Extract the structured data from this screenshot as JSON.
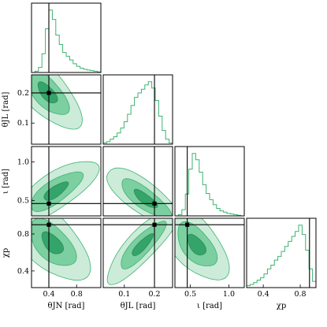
{
  "chart_data": {
    "type": "corner",
    "parameters": [
      {
        "key": "theta_JN",
        "label": "θJN [rad]",
        "ticks": [
          "0.4",
          "0.8"
        ],
        "tick_values": [
          0.4,
          0.8
        ],
        "range": [
          0.15,
          1.15
        ],
        "truth": 0.4
      },
      {
        "key": "theta_JL",
        "label": "θJL [rad]",
        "ticks": [
          "0.1",
          "0.2"
        ],
        "tick_values": [
          0.1,
          0.2
        ],
        "range": [
          0.03,
          0.26
        ],
        "truth": 0.2
      },
      {
        "key": "iota",
        "label": "ι [rad]",
        "ticks": [
          "0.5",
          "1.0"
        ],
        "tick_values": [
          0.5,
          1.0
        ],
        "range": [
          0.3,
          1.2
        ],
        "truth": 0.46
      },
      {
        "key": "chi_p",
        "label": "χp",
        "ticks": [
          "0.4",
          "0.8"
        ],
        "tick_values": [
          0.4,
          0.8
        ],
        "range": [
          0.22,
          0.97
        ],
        "truth": 0.9
      }
    ],
    "y_tick_labels": {
      "theta_JL": [
        "0.1",
        "0.2"
      ],
      "iota": [
        "0.5",
        "1.0"
      ],
      "chi_p": [
        "0.4",
        "0.8"
      ]
    },
    "y_tick_values": {
      "theta_JL": [
        0.1,
        0.2
      ],
      "iota": [
        0.5,
        1.0
      ],
      "chi_p": [
        0.4,
        0.8
      ]
    },
    "truth_color": "#000000",
    "posterior_color": "#3cb371",
    "contour_levels": [
      "outer",
      "middle",
      "inner"
    ],
    "marginals": {
      "theta_JN": [
        0.0,
        0.02,
        0.08,
        0.3,
        0.7,
        1.0,
        0.85,
        0.6,
        0.45,
        0.32,
        0.26,
        0.2,
        0.14,
        0.1,
        0.07,
        0.05,
        0.04,
        0.03,
        0.02,
        0.01
      ],
      "theta_JL": [
        0.02,
        0.04,
        0.08,
        0.12,
        0.18,
        0.26,
        0.36,
        0.48,
        0.62,
        0.75,
        0.82,
        0.88,
        0.95,
        1.0,
        0.9,
        0.7,
        0.45,
        0.22,
        0.08,
        0.02
      ],
      "iota": [
        0.0,
        0.02,
        0.1,
        0.35,
        0.75,
        1.0,
        0.9,
        0.7,
        0.5,
        0.36,
        0.26,
        0.18,
        0.12,
        0.08,
        0.06,
        0.04,
        0.03,
        0.02,
        0.01,
        0.0
      ],
      "chi_p": [
        0.03,
        0.05,
        0.08,
        0.12,
        0.16,
        0.22,
        0.3,
        0.36,
        0.44,
        0.5,
        0.58,
        0.66,
        0.74,
        0.82,
        0.9,
        1.0,
        0.85,
        0.6,
        0.3,
        0.1
      ]
    },
    "joint_contours": [
      {
        "x": "theta_JN",
        "y": "theta_JL",
        "center": [
          0.38,
          0.2
        ],
        "sx": 0.2,
        "sy": 0.05,
        "rho": -0.65
      },
      {
        "x": "theta_JN",
        "y": "iota",
        "center": [
          0.5,
          0.62
        ],
        "sx": 0.25,
        "sy": 0.17,
        "rho": 0.75
      },
      {
        "x": "theta_JL",
        "y": "iota",
        "center": [
          0.17,
          0.52
        ],
        "sx": 0.055,
        "sy": 0.17,
        "rho": -0.8
      },
      {
        "x": "theta_JN",
        "y": "chi_p",
        "center": [
          0.45,
          0.7
        ],
        "sx": 0.22,
        "sy": 0.17,
        "rho": -0.55
      },
      {
        "x": "theta_JL",
        "y": "chi_p",
        "center": [
          0.16,
          0.68
        ],
        "sx": 0.05,
        "sy": 0.17,
        "rho": 0.85
      },
      {
        "x": "iota",
        "y": "chi_p",
        "center": [
          0.58,
          0.68
        ],
        "sx": 0.17,
        "sy": 0.16,
        "rho": -0.55
      }
    ]
  }
}
